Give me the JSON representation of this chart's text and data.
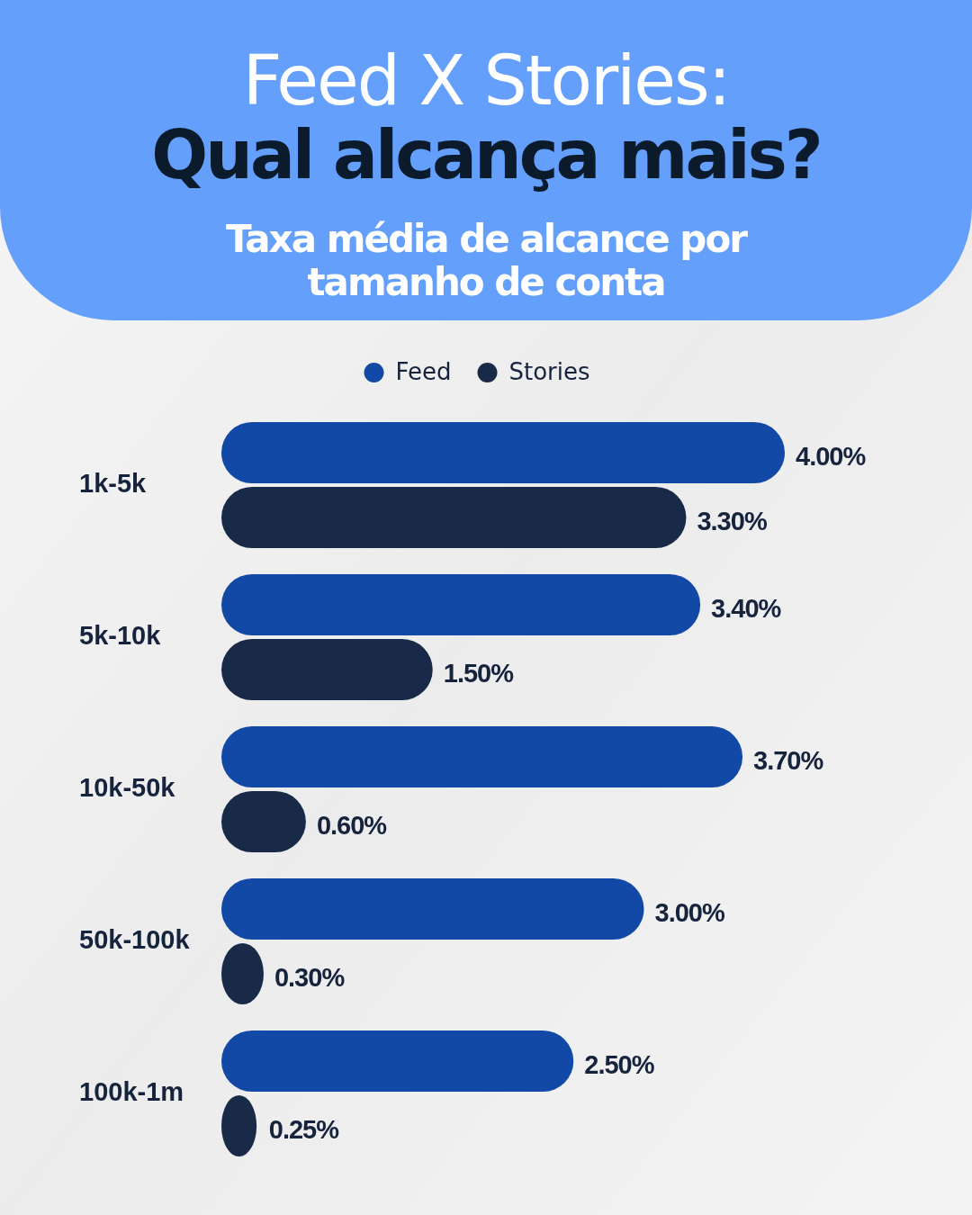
{
  "chart_data": {
    "type": "bar",
    "orientation": "horizontal",
    "title": "Feed X Stories:\nQual alcança mais?",
    "subtitle": "Taxa média de alcance por tamanho de conta",
    "categories": [
      "1k-5k",
      "5k-10k",
      "10k-50k",
      "50k-100k",
      "100k-1m"
    ],
    "series": [
      {
        "name": "Feed",
        "color": "#1249a6",
        "values": [
          4.0,
          3.4,
          3.7,
          3.0,
          2.5
        ],
        "value_labels": [
          "4.00%",
          "3.40%",
          "3.70%",
          "3.00%",
          "2.50%"
        ]
      },
      {
        "name": "Stories",
        "color": "#182a48",
        "values": [
          3.3,
          1.5,
          0.6,
          0.3,
          0.25
        ],
        "value_labels": [
          "3.30%",
          "1.50%",
          "0.60%",
          "0.30%",
          "0.25%"
        ]
      }
    ],
    "legend": "top"
  }
}
